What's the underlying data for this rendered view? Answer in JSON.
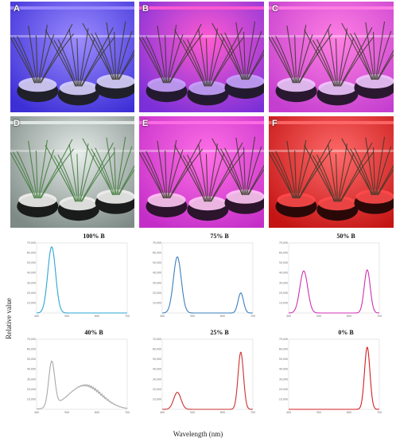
{
  "photos": [
    {
      "label": "A",
      "bg": "#3d2fd6",
      "light": "#9b8cff",
      "pot": "#20202a",
      "stone": "#d8d2ff"
    },
    {
      "label": "B",
      "bg": "#7a2fd8",
      "light": "#ff5bd1",
      "pot": "#241a30",
      "stone": "#c9a3ff"
    },
    {
      "label": "C",
      "bg": "#c43fcf",
      "light": "#ff7fe3",
      "pot": "#2a1830",
      "stone": "#f0c8ff"
    },
    {
      "label": "D",
      "bg": "#7d8a86",
      "light": "#e6ece9",
      "pot": "#1a1c1c",
      "stone": "#f2f2f0"
    },
    {
      "label": "E",
      "bg": "#c42ec8",
      "light": "#ff6fe6",
      "pot": "#2b142c",
      "stone": "#ffc8f5"
    },
    {
      "label": "F",
      "bg": "#c41414",
      "light": "#ff6a6a",
      "pot": "#2a0808",
      "stone": "#ff4a4a"
    }
  ],
  "axis": {
    "ylabel": "Relative value",
    "xlabel": "Wavelength (nm)"
  },
  "chart_data": [
    {
      "type": "line",
      "title": "100% B",
      "color": "#2aa6d6",
      "y_ticks": [
        "70,000",
        "60,000",
        "50,000",
        "40,000",
        "30,000",
        "20,000",
        "10,000"
      ],
      "x_ticks": [
        "400",
        "500",
        "600",
        "700"
      ],
      "series": [
        {
          "values": [
            {
              "peak": 450,
              "height": 66000,
              "width": 13
            }
          ]
        }
      ]
    },
    {
      "type": "line",
      "title": "75% B",
      "color": "#3a7fbf",
      "y_ticks": [
        "70,000",
        "60,000",
        "50,000",
        "40,000",
        "30,000",
        "20,000",
        "10,000"
      ],
      "x_ticks": [
        "400",
        "500",
        "600",
        "700"
      ],
      "series": [
        {
          "values": [
            {
              "peak": 450,
              "height": 56000,
              "width": 13
            },
            {
              "peak": 660,
              "height": 20000,
              "width": 9
            }
          ]
        }
      ]
    },
    {
      "type": "line",
      "title": "50% B",
      "color": "#d02fb5",
      "y_ticks": [
        "70,000",
        "60,000",
        "50,000",
        "40,000",
        "30,000",
        "20,000",
        "10,000"
      ],
      "x_ticks": [
        "400",
        "500",
        "600",
        "700"
      ],
      "series": [
        {
          "values": [
            {
              "peak": 450,
              "height": 42000,
              "width": 13
            },
            {
              "peak": 660,
              "height": 43000,
              "width": 10
            }
          ]
        }
      ]
    },
    {
      "type": "line",
      "title": "40% B",
      "color": "#a8a8a8",
      "y_ticks": [
        "70,000",
        "60,000",
        "50,000",
        "40,000",
        "30,000",
        "20,000",
        "10,000"
      ],
      "x_ticks": [
        "400",
        "500",
        "600",
        "700"
      ],
      "series": [
        {
          "values": [
            {
              "peak": 450,
              "height": 45000,
              "width": 10
            },
            {
              "peak": 560,
              "height": 24000,
              "width": 55
            }
          ]
        }
      ]
    },
    {
      "type": "line",
      "title": "25% B",
      "color": "#c93030",
      "y_ticks": [
        "70,000",
        "60,000",
        "50,000",
        "40,000",
        "30,000",
        "20,000",
        "10,000"
      ],
      "x_ticks": [
        "400",
        "500",
        "600",
        "700"
      ],
      "series": [
        {
          "values": [
            {
              "peak": 450,
              "height": 17000,
              "width": 12
            },
            {
              "peak": 660,
              "height": 57000,
              "width": 9
            }
          ]
        }
      ]
    },
    {
      "type": "line",
      "title": "0% B",
      "color": "#d61e1e",
      "y_ticks": [
        "70,000",
        "60,000",
        "50,000",
        "40,000",
        "30,000",
        "20,000",
        "10,000"
      ],
      "x_ticks": [
        "400",
        "500",
        "600",
        "700"
      ],
      "series": [
        {
          "values": [
            {
              "peak": 660,
              "height": 62000,
              "width": 9
            }
          ]
        }
      ]
    }
  ]
}
